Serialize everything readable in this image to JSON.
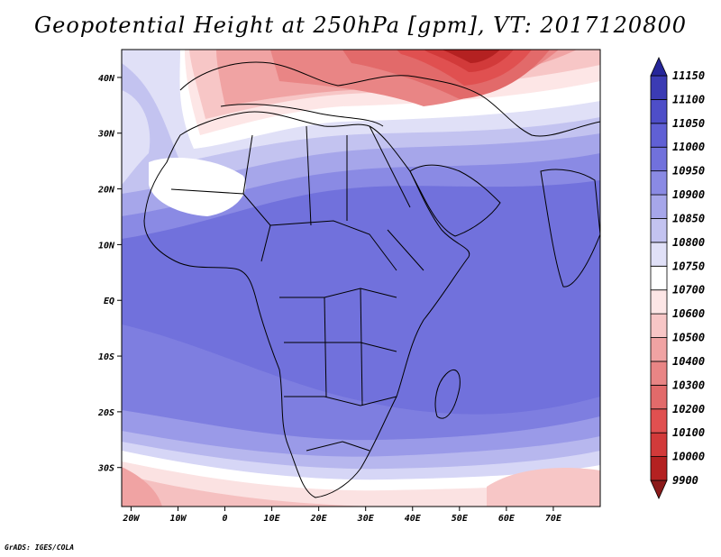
{
  "chart_data": {
    "type": "heatmap",
    "title": "Geopotential Height at 250hPa [gpm], VT: 2017120800",
    "credit": "GrADS: IGES/COLA",
    "x_ticks": [
      "20W",
      "10W",
      "0",
      "10E",
      "20E",
      "30E",
      "40E",
      "50E",
      "60E",
      "70E"
    ],
    "y_ticks": [
      "40N",
      "30N",
      "20N",
      "10N",
      "EQ",
      "10S",
      "20S",
      "30S"
    ],
    "xlim": [
      -22,
      80
    ],
    "ylim": [
      -37,
      45
    ],
    "colorbar": {
      "levels": [
        9900,
        10000,
        10100,
        10200,
        10300,
        10400,
        10500,
        10600,
        10700,
        10750,
        10800,
        10850,
        10900,
        10950,
        11000,
        11050,
        11100,
        11150
      ],
      "colors": [
        "#8b1a1a",
        "#b42121",
        "#d23a3a",
        "#e05050",
        "#e26a6a",
        "#e98585",
        "#f0a3a3",
        "#f7c6c6",
        "#fde6e6",
        "#ffffff",
        "#e0e0f7",
        "#c3c3f0",
        "#a6a6ea",
        "#8a8ae4",
        "#7171dc",
        "#6060d5",
        "#4e4ec8",
        "#3b3bb4",
        "#26269a"
      ]
    }
  }
}
